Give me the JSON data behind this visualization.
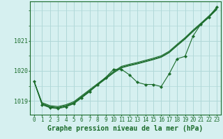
{
  "title": "Graphe pression niveau de la mer (hPa)",
  "background_color": "#d6f0f0",
  "grid_color": "#b0d8d8",
  "line_color": "#1a6b2a",
  "marker_color": "#1a6b2a",
  "xlim": [
    -0.5,
    23.5
  ],
  "ylim": [
    1018.55,
    1022.3
  ],
  "yticks": [
    1019,
    1020,
    1021
  ],
  "xticks": [
    0,
    1,
    2,
    3,
    4,
    5,
    6,
    7,
    8,
    9,
    10,
    11,
    12,
    13,
    14,
    15,
    16,
    17,
    18,
    19,
    20,
    21,
    22,
    23
  ],
  "smooth_series": [
    [
      1019.65,
      1018.95,
      1018.85,
      1018.82,
      1018.88,
      1018.98,
      1019.18,
      1019.38,
      1019.58,
      1019.78,
      1019.98,
      1020.15,
      1020.22,
      1020.28,
      1020.35,
      1020.42,
      1020.5,
      1020.65,
      1020.88,
      1021.1,
      1021.35,
      1021.58,
      1021.82,
      1022.08
    ],
    [
      1019.65,
      1018.92,
      1018.82,
      1018.79,
      1018.85,
      1018.95,
      1019.15,
      1019.35,
      1019.55,
      1019.75,
      1019.95,
      1020.12,
      1020.19,
      1020.25,
      1020.32,
      1020.39,
      1020.47,
      1020.62,
      1020.85,
      1021.07,
      1021.32,
      1021.55,
      1021.79,
      1022.05
    ],
    [
      1019.65,
      1018.9,
      1018.8,
      1018.77,
      1018.83,
      1018.93,
      1019.13,
      1019.33,
      1019.53,
      1019.73,
      1019.93,
      1020.1,
      1020.17,
      1020.23,
      1020.3,
      1020.37,
      1020.45,
      1020.6,
      1020.83,
      1021.05,
      1021.3,
      1021.53,
      1021.77,
      1022.03
    ]
  ],
  "zigzag_series": [
    1019.65,
    1018.88,
    1018.78,
    1018.75,
    1018.81,
    1018.91,
    1019.11,
    1019.31,
    1019.55,
    1019.78,
    1020.05,
    1020.05,
    1019.87,
    1019.62,
    1019.55,
    1019.55,
    1019.48,
    1019.9,
    1020.4,
    1020.48,
    1021.15,
    1021.55,
    1021.78,
    1022.12
  ],
  "ylabel_fontsize": 6,
  "xlabel_fontsize": 7,
  "tick_fontsize": 5.5
}
